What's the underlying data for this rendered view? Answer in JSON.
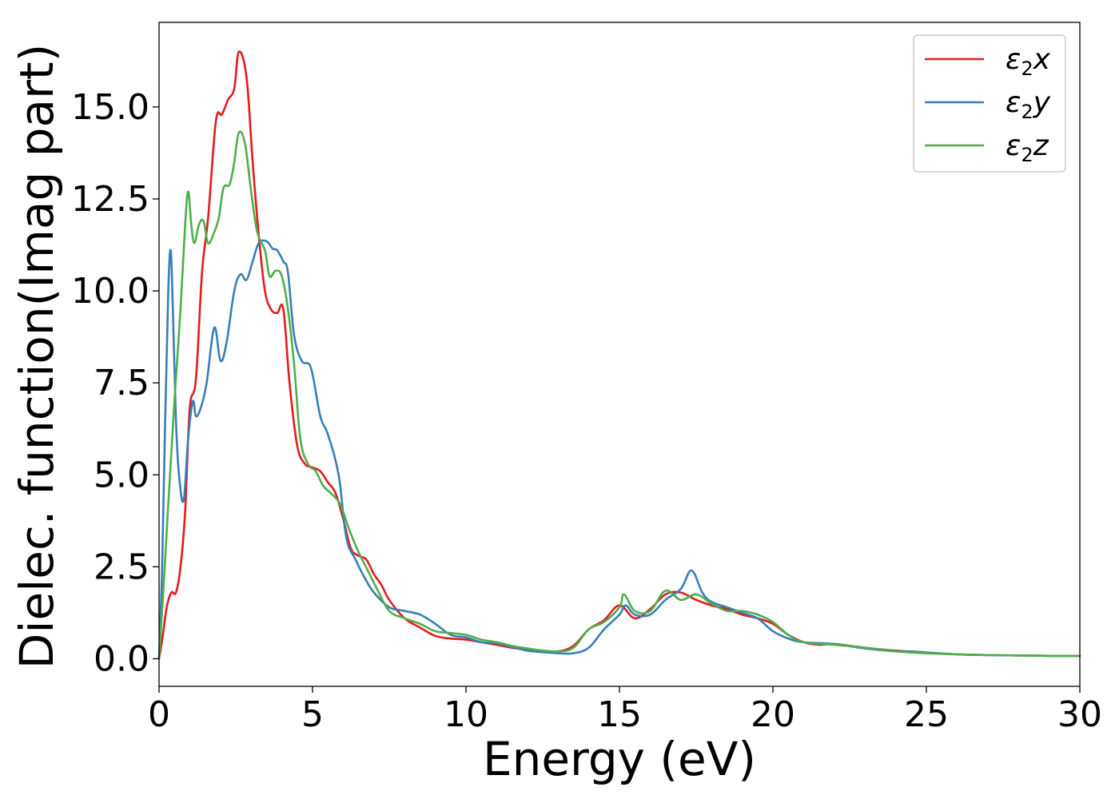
{
  "chart_data": {
    "type": "line",
    "title": "",
    "xlabel": "Energy (eV)",
    "ylabel": "Dielec. function(Imag part)",
    "xlim": [
      0,
      30
    ],
    "ylim": [
      -0.75,
      17.3
    ],
    "xticks": [
      0,
      5,
      10,
      15,
      20,
      25,
      30
    ],
    "xtick_labels": [
      "0",
      "5",
      "10",
      "15",
      "20",
      "25",
      "30"
    ],
    "yticks": [
      0,
      2.5,
      5,
      7.5,
      10,
      12.5,
      15
    ],
    "ytick_labels": [
      "0.0",
      "2.5",
      "5.0",
      "7.5",
      "10.0",
      "12.5",
      "15.0"
    ],
    "grid": false,
    "legend_position": "top-right",
    "series": [
      {
        "name": "ε2x",
        "legend_base": "ε",
        "legend_sub": "2",
        "legend_tail": "x",
        "color": "#e41a1c",
        "x": [
          0,
          0.1,
          0.25,
          0.4,
          0.55,
          0.7,
          0.85,
          1.0,
          1.2,
          1.4,
          1.6,
          1.85,
          2.05,
          2.25,
          2.45,
          2.6,
          2.85,
          3.05,
          3.25,
          3.45,
          3.65,
          3.85,
          4.05,
          4.25,
          4.5,
          4.75,
          5.0,
          5.25,
          5.5,
          5.75,
          6.0,
          6.25,
          6.5,
          6.75,
          7.0,
          7.25,
          7.5,
          8.0,
          8.5,
          9.0,
          9.5,
          10.0,
          10.5,
          11.0,
          11.5,
          12.0,
          12.5,
          13.0,
          13.5,
          14.0,
          14.5,
          15.0,
          15.5,
          16.0,
          16.5,
          17.0,
          17.5,
          18.0,
          18.5,
          19.0,
          19.5,
          20.0,
          20.5,
          21.0,
          21.5,
          22.0,
          23.0,
          24.0,
          25.0,
          26.0,
          27.0,
          28.0,
          29.0,
          30.0
        ],
        "y": [
          0.0,
          0.5,
          1.4,
          1.8,
          1.8,
          2.5,
          4.0,
          6.8,
          7.6,
          10.5,
          12.0,
          14.6,
          14.8,
          15.2,
          15.5,
          16.5,
          15.8,
          13.5,
          11.5,
          10.0,
          9.5,
          9.4,
          9.5,
          7.5,
          5.8,
          5.3,
          5.2,
          5.1,
          4.8,
          4.5,
          3.8,
          3.0,
          2.8,
          2.7,
          2.3,
          2.0,
          1.6,
          1.1,
          0.85,
          0.62,
          0.55,
          0.52,
          0.45,
          0.38,
          0.3,
          0.25,
          0.22,
          0.2,
          0.35,
          0.8,
          1.05,
          1.45,
          1.1,
          1.35,
          1.75,
          1.8,
          1.6,
          1.45,
          1.35,
          1.2,
          1.1,
          0.95,
          0.65,
          0.45,
          0.38,
          0.4,
          0.3,
          0.22,
          0.17,
          0.12,
          0.1,
          0.09,
          0.08,
          0.08
        ]
      },
      {
        "name": "ε2y",
        "legend_base": "ε",
        "legend_sub": "2",
        "legend_tail": "y",
        "color": "#377eb8",
        "x": [
          0,
          0.1,
          0.2,
          0.3,
          0.38,
          0.45,
          0.55,
          0.65,
          0.8,
          0.95,
          1.1,
          1.2,
          1.35,
          1.55,
          1.8,
          2.0,
          2.2,
          2.45,
          2.65,
          2.85,
          3.05,
          3.25,
          3.5,
          3.7,
          3.85,
          4.05,
          4.2,
          4.4,
          4.65,
          4.95,
          5.25,
          5.5,
          5.85,
          6.1,
          6.4,
          6.7,
          7.0,
          7.5,
          8.0,
          8.5,
          9.0,
          9.5,
          10.0,
          10.5,
          11.0,
          11.5,
          12.0,
          12.5,
          13.0,
          13.5,
          14.0,
          14.5,
          15.0,
          15.2,
          15.5,
          16.0,
          16.5,
          17.0,
          17.35,
          17.7,
          18.0,
          18.5,
          19.0,
          19.5,
          20.0,
          20.5,
          21.0,
          22.0,
          23.0,
          24.0,
          24.5,
          25.0,
          26.0,
          27.0,
          28.0,
          29.0,
          30.0
        ],
        "y": [
          0.0,
          2.5,
          6.5,
          10.0,
          11.1,
          9.5,
          6.5,
          5.0,
          4.3,
          6.0,
          7.0,
          6.6,
          6.8,
          7.5,
          9.0,
          8.1,
          8.6,
          10.0,
          10.45,
          10.3,
          10.8,
          11.3,
          11.35,
          11.15,
          11.1,
          10.8,
          10.5,
          8.8,
          8.1,
          7.9,
          6.6,
          6.1,
          5.0,
          3.3,
          2.7,
          2.2,
          1.8,
          1.4,
          1.3,
          1.2,
          0.95,
          0.65,
          0.58,
          0.45,
          0.42,
          0.32,
          0.22,
          0.18,
          0.15,
          0.15,
          0.3,
          0.8,
          1.2,
          1.45,
          1.2,
          1.2,
          1.6,
          1.9,
          2.4,
          1.8,
          1.55,
          1.4,
          1.25,
          1.1,
          0.75,
          0.55,
          0.45,
          0.4,
          0.28,
          0.2,
          0.2,
          0.17,
          0.12,
          0.1,
          0.09,
          0.08,
          0.08
        ]
      },
      {
        "name": "ε2z",
        "legend_base": "ε",
        "legend_sub": "2",
        "legend_tail": "z",
        "color": "#4daf4a",
        "x": [
          0,
          0.15,
          0.3,
          0.5,
          0.7,
          0.85,
          0.95,
          1.05,
          1.15,
          1.3,
          1.45,
          1.6,
          1.8,
          1.95,
          2.1,
          2.3,
          2.45,
          2.6,
          2.8,
          3.0,
          3.2,
          3.45,
          3.6,
          3.8,
          4.0,
          4.2,
          4.4,
          4.6,
          4.85,
          5.1,
          5.35,
          5.6,
          5.9,
          6.2,
          6.5,
          6.8,
          7.1,
          7.5,
          8.0,
          8.5,
          9.0,
          9.5,
          10.0,
          10.5,
          11.0,
          11.5,
          12.0,
          12.5,
          13.0,
          13.5,
          14.0,
          14.5,
          15.0,
          15.15,
          15.5,
          16.0,
          16.5,
          17.0,
          17.5,
          18.0,
          18.5,
          19.0,
          19.5,
          20.0,
          20.5,
          21.0,
          22.0,
          23.0,
          24.0,
          25.0,
          26.0,
          27.0,
          28.0,
          29.0,
          30.0
        ],
        "y": [
          0.0,
          2.0,
          4.2,
          7.0,
          9.5,
          11.8,
          12.7,
          11.8,
          11.3,
          11.8,
          11.9,
          11.3,
          11.6,
          12.0,
          12.8,
          12.9,
          13.5,
          14.3,
          14.0,
          12.7,
          11.6,
          11.1,
          10.4,
          10.55,
          10.4,
          9.5,
          8.0,
          6.0,
          5.3,
          5.1,
          4.7,
          4.5,
          4.2,
          3.5,
          2.9,
          2.4,
          1.9,
          1.3,
          1.1,
          0.95,
          0.75,
          0.7,
          0.65,
          0.52,
          0.45,
          0.35,
          0.28,
          0.22,
          0.2,
          0.3,
          0.8,
          1.0,
          1.4,
          1.75,
          1.3,
          1.3,
          1.85,
          1.6,
          1.75,
          1.5,
          1.3,
          1.3,
          1.2,
          1.0,
          0.65,
          0.45,
          0.38,
          0.3,
          0.2,
          0.15,
          0.12,
          0.1,
          0.09,
          0.08,
          0.08
        ]
      }
    ]
  }
}
